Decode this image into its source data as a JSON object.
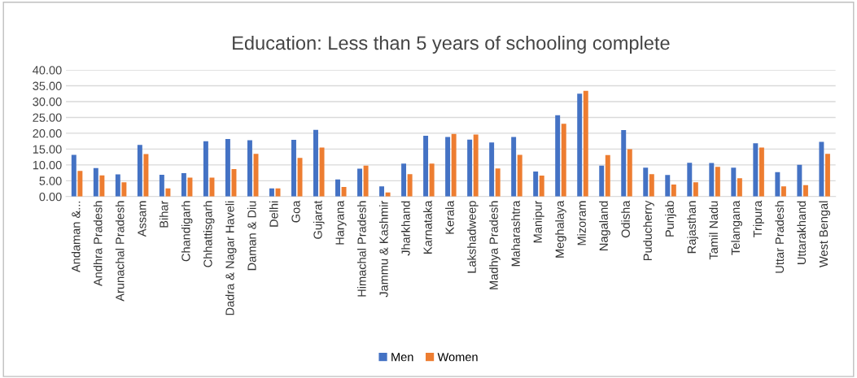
{
  "chart_data": {
    "type": "bar",
    "title": "Education: Less than 5 years of schooling complete",
    "categories": [
      "Andaman &...",
      "Andhra Pradesh",
      "Arunachal Pradesh",
      "Assam",
      "Bihar",
      "Chandigarh",
      "Chhattisgarh",
      "Dadra & Nagar Haveli",
      "Daman & Diu",
      "Delhi",
      "Goa",
      "Gujarat",
      "Haryana",
      "Himachal Pradesh",
      "Jammu & Kashmir",
      "Jharkhand",
      "Karnataka",
      "Kerala",
      "Lakshadweep",
      "Madhya Pradesh",
      "Maharashtra",
      "Manipur",
      "Meghalaya",
      "Mizoram",
      "Nagaland",
      "Odisha",
      "Puducherry",
      "Punjab",
      "Rajasthan",
      "Tamil Nadu",
      "Telangana",
      "Tripura",
      "Uttar Pradesh",
      "Uttarakhand",
      "West Bengal"
    ],
    "series": [
      {
        "name": "Men",
        "color": "#4472c4",
        "values": [
          13.2,
          9.0,
          7.0,
          16.3,
          6.9,
          7.4,
          17.5,
          18.2,
          17.8,
          2.6,
          17.9,
          21.1,
          5.4,
          8.8,
          3.2,
          10.4,
          19.2,
          18.8,
          18.0,
          17.1,
          18.8,
          7.9,
          25.7,
          32.5,
          9.8,
          21.0,
          9.1,
          6.8,
          10.7,
          10.6,
          9.1,
          16.8,
          7.7,
          10.0,
          17.3
        ]
      },
      {
        "name": "Women",
        "color": "#ed7d31",
        "values": [
          8.1,
          6.7,
          4.5,
          13.4,
          2.6,
          6.0,
          6.0,
          8.7,
          13.5,
          2.6,
          12.2,
          15.5,
          3.0,
          9.8,
          1.3,
          7.1,
          10.4,
          19.8,
          19.6,
          8.9,
          13.2,
          6.6,
          23.0,
          33.4,
          13.1,
          15.0,
          7.1,
          3.8,
          4.5,
          9.4,
          5.8,
          15.5,
          3.2,
          3.6,
          13.5
        ]
      }
    ],
    "ylim": [
      0,
      40
    ],
    "yticks": [
      {
        "value": 0,
        "label": "0.00"
      },
      {
        "value": 5,
        "label": "5.00"
      },
      {
        "value": 10,
        "label": "10.00"
      },
      {
        "value": 15,
        "label": "15.00"
      },
      {
        "value": 20,
        "label": "20.00"
      },
      {
        "value": 25,
        "label": "25.00"
      },
      {
        "value": 30,
        "label": "30.00"
      },
      {
        "value": 35,
        "label": "35.00"
      },
      {
        "value": 40,
        "label": "40.00"
      }
    ],
    "grid": "y",
    "legend": "bottom"
  }
}
